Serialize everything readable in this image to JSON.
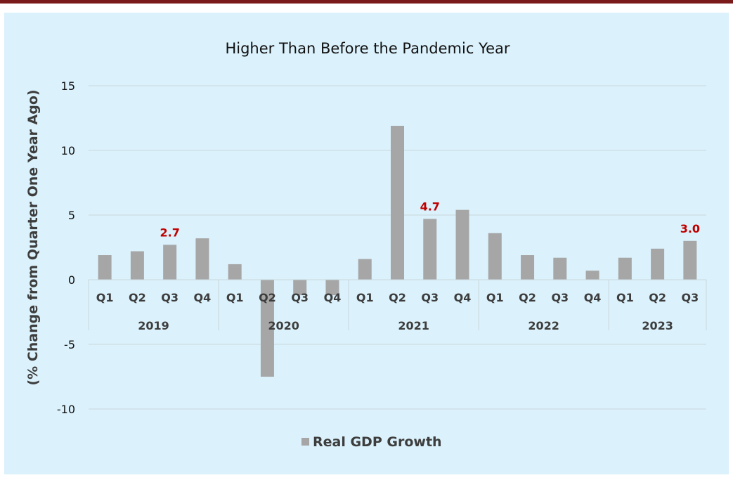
{
  "chart_data": {
    "type": "bar",
    "title": "Higher Than Before the Pandemic Year",
    "ylabel": "(% Change from Quarter One Year Ago)",
    "xlabel": "",
    "ylim": [
      -10,
      15
    ],
    "yticks": [
      15,
      10,
      5,
      0,
      -5,
      -10
    ],
    "grid": true,
    "legend_position": "bottom",
    "bar_color": "#a6a6a6",
    "label_color": "#c00000",
    "categories": [
      "Q1",
      "Q2",
      "Q3",
      "Q4",
      "Q1",
      "Q2",
      "Q3",
      "Q4",
      "Q1",
      "Q2",
      "Q3",
      "Q4",
      "Q1",
      "Q2",
      "Q3",
      "Q4",
      "Q1",
      "Q2",
      "Q3"
    ],
    "years": [
      {
        "label": "2019",
        "count": 4
      },
      {
        "label": "2020",
        "count": 4
      },
      {
        "label": "2021",
        "count": 4
      },
      {
        "label": "2022",
        "count": 4
      },
      {
        "label": "2023",
        "count": 3
      }
    ],
    "series": [
      {
        "name": "Real GDP Growth",
        "values": [
          1.9,
          2.2,
          2.7,
          3.2,
          1.2,
          -7.5,
          -1.2,
          -1.2,
          1.6,
          11.9,
          4.7,
          5.4,
          3.6,
          1.9,
          1.7,
          0.7,
          1.7,
          2.4,
          3.0
        ]
      }
    ],
    "data_labels": [
      {
        "index": 2,
        "text": "2.7"
      },
      {
        "index": 10,
        "text": "4.7"
      },
      {
        "index": 18,
        "text": "3.0"
      }
    ]
  }
}
